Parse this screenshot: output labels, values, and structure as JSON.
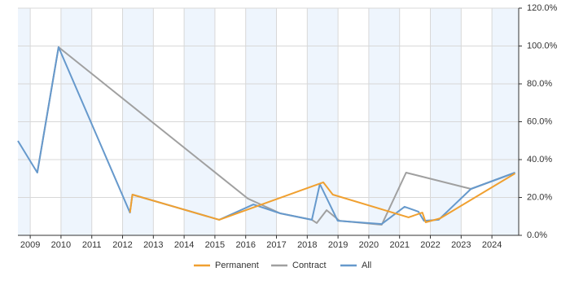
{
  "chart_data": {
    "type": "line",
    "xlim": [
      2008.6,
      2024.87
    ],
    "xticks": [
      2009,
      2010,
      2011,
      2012,
      2013,
      2014,
      2015,
      2016,
      2017,
      2018,
      2019,
      2020,
      2021,
      2022,
      2023,
      2024
    ],
    "ylim": [
      0,
      120
    ],
    "yticks": [
      {
        "value": 0,
        "label": "0.0%"
      },
      {
        "value": 20,
        "label": "20.0%"
      },
      {
        "value": 40,
        "label": "40.0%"
      },
      {
        "value": 60,
        "label": "60.0%"
      },
      {
        "value": 80,
        "label": "80.0%"
      },
      {
        "value": 100,
        "label": "100.0%"
      },
      {
        "value": 120,
        "label": "120.0%"
      }
    ],
    "grid": true,
    "legend": "bottom",
    "series": [
      {
        "name": "Permanent",
        "color": "#f0a030",
        "x": [
          2012.24,
          2012.32,
          2015.14,
          2018.52,
          2018.83,
          2021.29,
          2021.74,
          2021.85,
          2022.32,
          2024.75
        ],
        "values": [
          12.0,
          21.5,
          8.2,
          28.0,
          21.5,
          9.5,
          12.0,
          6.9,
          9.0,
          32.7
        ]
      },
      {
        "name": "Contract",
        "color": "#a0a0a0",
        "x": [
          2009.23,
          2009.92,
          2016.07,
          2017.12,
          2018.15,
          2018.31,
          2018.63,
          2019.05,
          2020.42,
          2021.21,
          2023.32,
          2024.75
        ],
        "values": [
          33.1,
          99.4,
          19.4,
          11.6,
          8.2,
          6.5,
          13.3,
          7.7,
          5.6,
          33.1,
          24.5,
          33.1
        ]
      },
      {
        "name": "All",
        "color": "#6699cc",
        "x": [
          2008.6,
          2009.23,
          2009.92,
          2012.24,
          2012.32,
          2015.14,
          2016.25,
          2017.12,
          2018.15,
          2018.41,
          2018.99,
          2020.42,
          2021.16,
          2021.61,
          2021.79,
          2022.27,
          2023.32,
          2024.75
        ],
        "values": [
          49.9,
          33.1,
          99.4,
          12.0,
          21.5,
          8.2,
          16.3,
          11.6,
          8.2,
          27.1,
          7.7,
          6.0,
          15.1,
          12.5,
          7.7,
          8.2,
          24.5,
          33.1
        ]
      }
    ]
  }
}
